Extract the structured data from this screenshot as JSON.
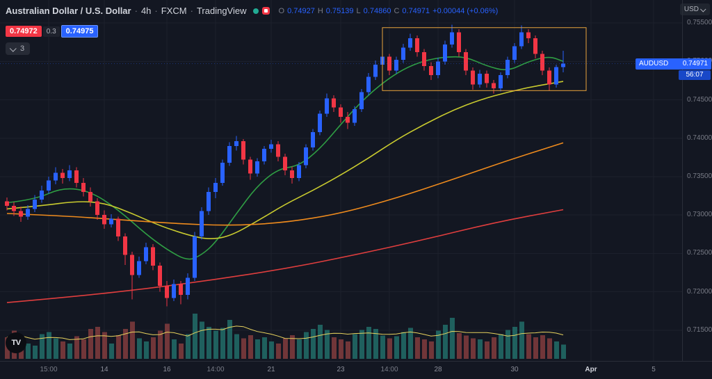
{
  "header": {
    "title": "Australian Dollar / U.S. Dollar",
    "separator": "·",
    "interval": "4h",
    "exchange": "FXCM",
    "brand": "TradingView",
    "ohlc": {
      "o_label": "O",
      "o": "0.74927",
      "h_label": "H",
      "h": "0.75139",
      "l_label": "L",
      "l": "0.74860",
      "c_label": "C",
      "c": "0.74971",
      "change": "+0.00044 (+0.06%)"
    },
    "bid": "0.74972",
    "spread": "0.3",
    "ask": "0.74975",
    "legend_collapsed_count": "3"
  },
  "price_axis": {
    "currency_button": "USD",
    "labels": [
      "0.75500",
      "0.75000",
      "0.74500",
      "0.74000",
      "0.73500",
      "0.73000",
      "0.72500",
      "0.72000",
      "0.71500"
    ],
    "last_price_label": {
      "symbol": "AUDUSD",
      "price": "0.74971",
      "countdown": "56:07"
    }
  },
  "logo_text": "TV",
  "colors": {
    "background": "#131722",
    "grid": "#1c202c",
    "axis_text": "#787b86",
    "up": "#2962ff",
    "down": "#f23645",
    "volume_up": "#2a9d8f",
    "volume_down": "#c0504d",
    "bid_bg": "#f23645",
    "ask_bg": "#2962ff",
    "tag_bg": "#2962ff",
    "countdown_bg": "#1848c8"
  },
  "chart_data": {
    "type": "candlestick",
    "title": "Australian Dollar / U.S. Dollar",
    "symbol": "AUDUSD",
    "interval": "4h",
    "exchange": "FXCM",
    "last": {
      "open": 0.74927,
      "high": 0.75139,
      "low": 0.7486,
      "close": 0.74971,
      "change": "+0.00044",
      "change_pct": "+0.06%"
    },
    "price_scale": {
      "top": 0.758,
      "bottom": 0.711
    },
    "time_labels": [
      {
        "text": "15:00",
        "index": 6,
        "major": false
      },
      {
        "text": "14",
        "index": 14,
        "major": true
      },
      {
        "text": "16",
        "index": 23,
        "major": true
      },
      {
        "text": "14:00",
        "index": 30,
        "major": false
      },
      {
        "text": "21",
        "index": 38,
        "major": true
      },
      {
        "text": "23",
        "index": 48,
        "major": true
      },
      {
        "text": "14:00",
        "index": 55,
        "major": false
      },
      {
        "text": "28",
        "index": 62,
        "major": true
      },
      {
        "text": "30",
        "index": 73,
        "major": true
      },
      {
        "text": "Apr",
        "index": 84,
        "major": true,
        "highlight": true
      },
      {
        "text": "5",
        "index": 93,
        "major": true
      }
    ],
    "candles": [
      [
        0.7318,
        0.7323,
        0.7306,
        0.7312
      ],
      [
        0.7312,
        0.7317,
        0.7299,
        0.7305
      ],
      [
        0.7305,
        0.7311,
        0.7291,
        0.7298
      ],
      [
        0.7298,
        0.7313,
        0.7294,
        0.7308
      ],
      [
        0.7308,
        0.7326,
        0.7304,
        0.732
      ],
      [
        0.732,
        0.7338,
        0.7316,
        0.7332
      ],
      [
        0.7332,
        0.735,
        0.7328,
        0.7345
      ],
      [
        0.7345,
        0.7362,
        0.734,
        0.7355
      ],
      [
        0.7355,
        0.736,
        0.7341,
        0.7348
      ],
      [
        0.7348,
        0.7365,
        0.7344,
        0.7358
      ],
      [
        0.7358,
        0.7362,
        0.7336,
        0.7342
      ],
      [
        0.7342,
        0.7348,
        0.7324,
        0.733
      ],
      [
        0.733,
        0.7336,
        0.7311,
        0.7318
      ],
      [
        0.7318,
        0.7322,
        0.7294,
        0.73
      ],
      [
        0.73,
        0.7306,
        0.7282,
        0.7288
      ],
      [
        0.7288,
        0.7301,
        0.7284,
        0.7295
      ],
      [
        0.7295,
        0.7298,
        0.7266,
        0.7272
      ],
      [
        0.7272,
        0.7276,
        0.7235,
        0.7248
      ],
      [
        0.7248,
        0.7252,
        0.719,
        0.7222
      ],
      [
        0.7222,
        0.7246,
        0.7218,
        0.724
      ],
      [
        0.724,
        0.7264,
        0.7236,
        0.7258
      ],
      [
        0.7258,
        0.7262,
        0.7228,
        0.7234
      ],
      [
        0.7234,
        0.7238,
        0.72,
        0.7208
      ],
      [
        0.7208,
        0.7214,
        0.7181,
        0.7192
      ],
      [
        0.7192,
        0.7216,
        0.7188,
        0.721
      ],
      [
        0.721,
        0.7214,
        0.7184,
        0.7196
      ],
      [
        0.7196,
        0.7224,
        0.719,
        0.7218
      ],
      [
        0.7218,
        0.7278,
        0.7214,
        0.7272
      ],
      [
        0.7272,
        0.731,
        0.7268,
        0.7305
      ],
      [
        0.7305,
        0.7336,
        0.73,
        0.733
      ],
      [
        0.733,
        0.7348,
        0.7322,
        0.7342
      ],
      [
        0.7342,
        0.7372,
        0.7338,
        0.7368
      ],
      [
        0.7368,
        0.7395,
        0.7364,
        0.739
      ],
      [
        0.739,
        0.7403,
        0.7384,
        0.7396
      ],
      [
        0.7396,
        0.7399,
        0.7366,
        0.7372
      ],
      [
        0.7372,
        0.7376,
        0.7346,
        0.7354
      ],
      [
        0.7354,
        0.7374,
        0.735,
        0.737
      ],
      [
        0.737,
        0.739,
        0.7366,
        0.7386
      ],
      [
        0.7386,
        0.7398,
        0.7381,
        0.7392
      ],
      [
        0.7392,
        0.7396,
        0.737,
        0.7376
      ],
      [
        0.7376,
        0.738,
        0.7352,
        0.7358
      ],
      [
        0.7358,
        0.7363,
        0.7341,
        0.7348
      ],
      [
        0.7348,
        0.7369,
        0.7344,
        0.7365
      ],
      [
        0.7365,
        0.7392,
        0.7361,
        0.7388
      ],
      [
        0.7388,
        0.7412,
        0.7384,
        0.7408
      ],
      [
        0.7408,
        0.7436,
        0.7404,
        0.7432
      ],
      [
        0.7432,
        0.7458,
        0.7428,
        0.7452
      ],
      [
        0.7452,
        0.7456,
        0.7434,
        0.744
      ],
      [
        0.744,
        0.7444,
        0.742,
        0.7428
      ],
      [
        0.7428,
        0.7434,
        0.7412,
        0.742
      ],
      [
        0.742,
        0.7442,
        0.7416,
        0.7438
      ],
      [
        0.7438,
        0.7464,
        0.7434,
        0.746
      ],
      [
        0.746,
        0.7485,
        0.7456,
        0.748
      ],
      [
        0.748,
        0.7501,
        0.7476,
        0.7496
      ],
      [
        0.7496,
        0.7512,
        0.749,
        0.7506
      ],
      [
        0.7506,
        0.751,
        0.7482,
        0.7488
      ],
      [
        0.7488,
        0.7506,
        0.7484,
        0.7502
      ],
      [
        0.7502,
        0.7523,
        0.7498,
        0.7518
      ],
      [
        0.7518,
        0.7536,
        0.7514,
        0.753
      ],
      [
        0.753,
        0.7534,
        0.7506,
        0.7512
      ],
      [
        0.7512,
        0.7516,
        0.7488,
        0.7494
      ],
      [
        0.7494,
        0.7499,
        0.7476,
        0.7482
      ],
      [
        0.7482,
        0.7505,
        0.7478,
        0.75
      ],
      [
        0.75,
        0.7527,
        0.7496,
        0.7522
      ],
      [
        0.7522,
        0.7548,
        0.7518,
        0.7538
      ],
      [
        0.7538,
        0.7542,
        0.7506,
        0.7512
      ],
      [
        0.7512,
        0.7516,
        0.7482,
        0.7488
      ],
      [
        0.7488,
        0.7492,
        0.7463,
        0.747
      ],
      [
        0.747,
        0.7489,
        0.7466,
        0.7484
      ],
      [
        0.7484,
        0.7488,
        0.7466,
        0.7472
      ],
      [
        0.7472,
        0.7476,
        0.7458,
        0.7465
      ],
      [
        0.7465,
        0.7486,
        0.7461,
        0.7482
      ],
      [
        0.7482,
        0.7506,
        0.7478,
        0.7502
      ],
      [
        0.7502,
        0.7524,
        0.7498,
        0.752
      ],
      [
        0.752,
        0.7547,
        0.7516,
        0.7538
      ],
      [
        0.7538,
        0.7542,
        0.7524,
        0.753
      ],
      [
        0.753,
        0.7534,
        0.7504,
        0.751
      ],
      [
        0.751,
        0.7514,
        0.7482,
        0.7488
      ],
      [
        0.7488,
        0.7492,
        0.7462,
        0.747
      ],
      [
        0.747,
        0.7496,
        0.7466,
        0.74927
      ],
      [
        0.74927,
        0.75139,
        0.7486,
        0.74971
      ]
    ],
    "volume": [
      42,
      55,
      38,
      30,
      26,
      48,
      52,
      40,
      34,
      30,
      44,
      38,
      58,
      62,
      52,
      30,
      46,
      58,
      72,
      40,
      34,
      42,
      55,
      68,
      38,
      30,
      48,
      88,
      72,
      62,
      55,
      60,
      76,
      48,
      40,
      46,
      38,
      42,
      34,
      30,
      40,
      46,
      38,
      52,
      58,
      66,
      56,
      42,
      38,
      34,
      48,
      56,
      62,
      58,
      45,
      40,
      44,
      52,
      60,
      42,
      38,
      34,
      55,
      66,
      80,
      50,
      45,
      40,
      38,
      34,
      42,
      48,
      56,
      62,
      72,
      48,
      42,
      46,
      40,
      34,
      28
    ],
    "ma_lines": [
      {
        "name": "ma-fast-green",
        "color": "#2f9e44",
        "points": [
          [
            0,
            0.7316
          ],
          [
            4,
            0.732
          ],
          [
            8,
            0.7336
          ],
          [
            12,
            0.7331
          ],
          [
            16,
            0.7307
          ],
          [
            20,
            0.7275
          ],
          [
            23,
            0.7255
          ],
          [
            26,
            0.724
          ],
          [
            28,
            0.7248
          ],
          [
            30,
            0.7264
          ],
          [
            33,
            0.7302
          ],
          [
            36,
            0.7338
          ],
          [
            39,
            0.736
          ],
          [
            42,
            0.7364
          ],
          [
            45,
            0.7386
          ],
          [
            48,
            0.7418
          ],
          [
            51,
            0.7448
          ],
          [
            54,
            0.7472
          ],
          [
            57,
            0.749
          ],
          [
            60,
            0.7501
          ],
          [
            63,
            0.7506
          ],
          [
            66,
            0.7506
          ],
          [
            69,
            0.7494
          ],
          [
            72,
            0.7487
          ],
          [
            75,
            0.75
          ],
          [
            78,
            0.7507
          ],
          [
            80,
            0.75
          ]
        ]
      },
      {
        "name": "ma-medium-yellow",
        "color": "#c9cb2f",
        "points": [
          [
            0,
            0.7308
          ],
          [
            5,
            0.7312
          ],
          [
            10,
            0.7318
          ],
          [
            14,
            0.7316
          ],
          [
            18,
            0.7302
          ],
          [
            22,
            0.7286
          ],
          [
            26,
            0.7274
          ],
          [
            29,
            0.7268
          ],
          [
            32,
            0.7272
          ],
          [
            36,
            0.7292
          ],
          [
            40,
            0.7314
          ],
          [
            44,
            0.7332
          ],
          [
            48,
            0.7352
          ],
          [
            52,
            0.7374
          ],
          [
            56,
            0.7398
          ],
          [
            60,
            0.7418
          ],
          [
            64,
            0.7436
          ],
          [
            68,
            0.745
          ],
          [
            72,
            0.746
          ],
          [
            76,
            0.7468
          ],
          [
            80,
            0.7474
          ]
        ]
      },
      {
        "name": "ma-slow-orange",
        "color": "#ef8b1d",
        "points": [
          [
            0,
            0.7302
          ],
          [
            8,
            0.7299
          ],
          [
            16,
            0.7294
          ],
          [
            24,
            0.7289
          ],
          [
            32,
            0.7286
          ],
          [
            40,
            0.729
          ],
          [
            48,
            0.7302
          ],
          [
            56,
            0.7322
          ],
          [
            64,
            0.7346
          ],
          [
            72,
            0.7371
          ],
          [
            80,
            0.7394
          ]
        ]
      },
      {
        "name": "ma-long-red",
        "color": "#e03e3e",
        "points": [
          [
            0,
            0.7186
          ],
          [
            10,
            0.7194
          ],
          [
            20,
            0.7204
          ],
          [
            30,
            0.7216
          ],
          [
            40,
            0.723
          ],
          [
            50,
            0.7248
          ],
          [
            60,
            0.7268
          ],
          [
            70,
            0.729
          ],
          [
            80,
            0.7307
          ]
        ]
      }
    ],
    "volume_ma": {
      "window": 8,
      "color": "#e8d35e"
    },
    "rectangle": {
      "index_start": 54,
      "index_end": 83.3,
      "price_top": 0.7544,
      "price_bottom": 0.7462,
      "color": "#e8a33c"
    },
    "last_price_line": {
      "price": 0.74971,
      "color": "#2962ff"
    }
  }
}
